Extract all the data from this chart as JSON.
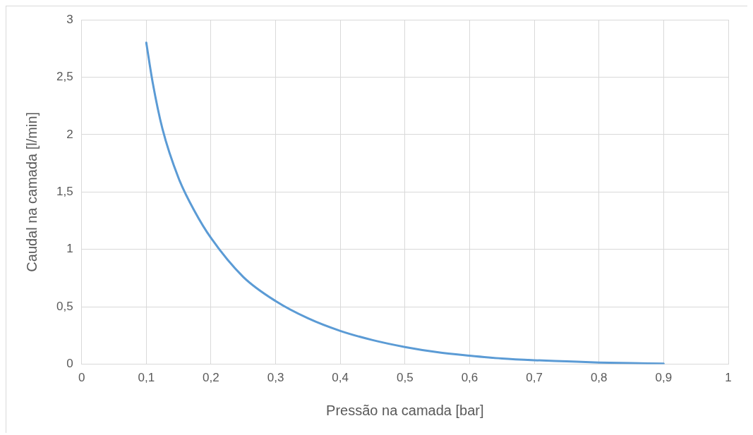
{
  "chart_data": {
    "type": "line",
    "xlabel": "Pressão na camada [bar]",
    "ylabel": "Caudal na camada [l/min]",
    "series": [
      {
        "color": "#5b9bd5",
        "x": [
          0.1,
          0.11,
          0.125,
          0.15,
          0.175,
          0.2,
          0.25,
          0.3,
          0.35,
          0.4,
          0.45,
          0.5,
          0.55,
          0.6,
          0.65,
          0.7,
          0.75,
          0.8,
          0.85,
          0.9
        ],
        "values": [
          2.8,
          2.45,
          2.05,
          1.62,
          1.33,
          1.1,
          0.76,
          0.55,
          0.4,
          0.29,
          0.21,
          0.15,
          0.105,
          0.075,
          0.05,
          0.035,
          0.025,
          0.015,
          0.01,
          0.005
        ]
      }
    ],
    "xlim": [
      0,
      1
    ],
    "xticks": [
      {
        "value": 0,
        "label": "0"
      },
      {
        "value": 0.1,
        "label": "0,1"
      },
      {
        "value": 0.2,
        "label": "0,2"
      },
      {
        "value": 0.3,
        "label": "0,3"
      },
      {
        "value": 0.4,
        "label": "0,4"
      },
      {
        "value": 0.5,
        "label": "0,5"
      },
      {
        "value": 0.6,
        "label": "0,6"
      },
      {
        "value": 0.7,
        "label": "0,7"
      },
      {
        "value": 0.8,
        "label": "0,8"
      },
      {
        "value": 0.9,
        "label": "0,9"
      },
      {
        "value": 1,
        "label": "1"
      }
    ],
    "ylim": [
      0,
      3
    ],
    "yticks": [
      {
        "value": 0,
        "label": "0"
      },
      {
        "value": 0.5,
        "label": "0,5"
      },
      {
        "value": 1,
        "label": "1"
      },
      {
        "value": 1.5,
        "label": "1,5"
      },
      {
        "value": 2,
        "label": "2"
      },
      {
        "value": 2.5,
        "label": "2,5"
      },
      {
        "value": 3,
        "label": "3"
      }
    ],
    "grid": true,
    "marker": "none",
    "line_style": "solid",
    "legend": false
  }
}
